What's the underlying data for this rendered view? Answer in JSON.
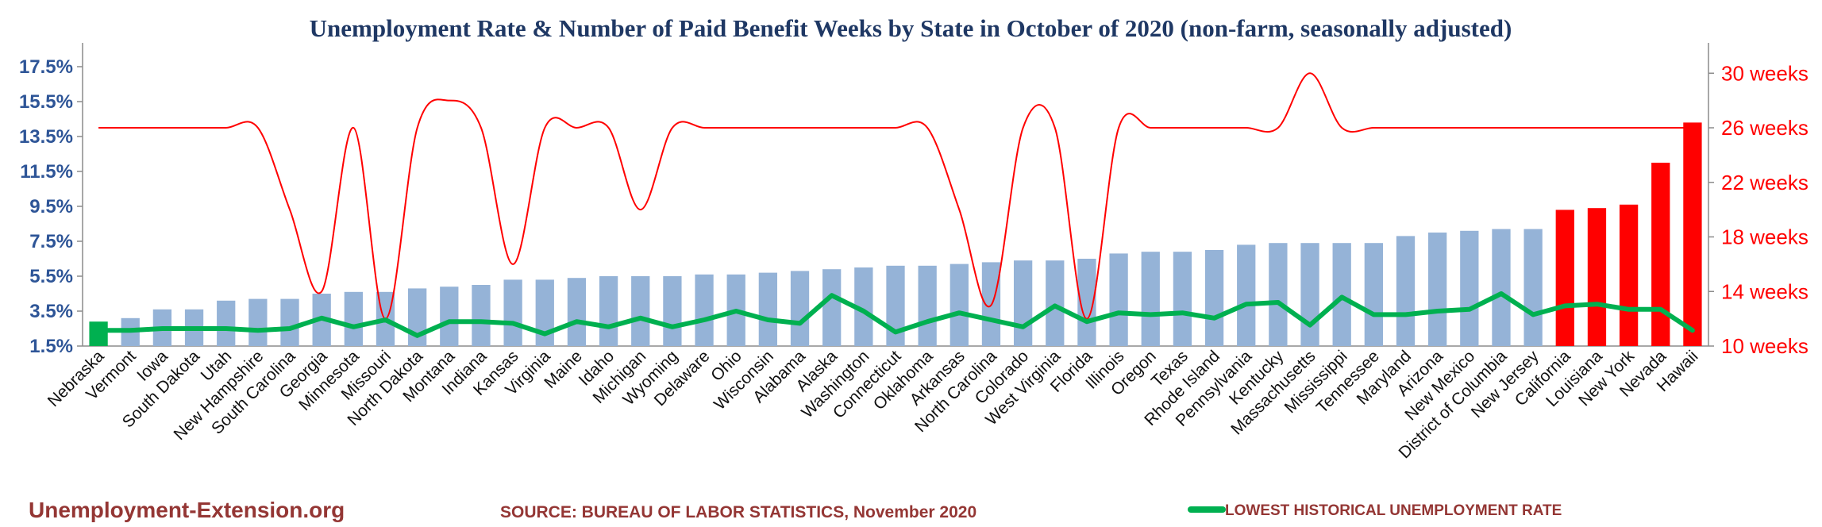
{
  "chart_data": {
    "type": "bar",
    "title": "Unemployment Rate & Number of Paid Benefit Weeks by State in October of 2020 (non-farm, seasonally adjusted)",
    "categories": [
      "Nebraska",
      "Vermont",
      "Iowa",
      "South Dakota",
      "Utah",
      "New Hampshire",
      "South Carolina",
      "Georgia",
      "Minnesota",
      "Missouri",
      "North Dakota",
      "Montana",
      "Indiana",
      "Kansas",
      "Virginia",
      "Maine",
      "Idaho",
      "Michigan",
      "Wyoming",
      "Delaware",
      "Ohio",
      "Wisconsin",
      "Alabama",
      "Alaska",
      "Washington",
      "Connecticut",
      "Oklahoma",
      "Arkansas",
      "North Carolina",
      "Colorado",
      "West Virginia",
      "Florida",
      "Illinois",
      "Oregon",
      "Texas",
      "Rhode Island",
      "Pennsylvania",
      "Kentucky",
      "Massachusetts",
      "Mississippi",
      "Tennessee",
      "Maryland",
      "Arizona",
      "New Mexico",
      "District of Columbia",
      "New Jersey",
      "California",
      "Louisiana",
      "New York",
      "Nevada",
      "Hawaii"
    ],
    "series": [
      {
        "role": "unemployment_rate_pct",
        "axis": "left",
        "values": [
          2.9,
          3.1,
          3.6,
          3.6,
          4.1,
          4.2,
          4.2,
          4.5,
          4.6,
          4.6,
          4.8,
          4.9,
          5.0,
          5.3,
          5.3,
          5.4,
          5.5,
          5.5,
          5.5,
          5.6,
          5.6,
          5.7,
          5.8,
          5.9,
          6.0,
          6.1,
          6.1,
          6.2,
          6.3,
          6.4,
          6.4,
          6.5,
          6.8,
          6.9,
          6.9,
          7.0,
          7.3,
          7.4,
          7.4,
          7.4,
          7.4,
          7.8,
          8.0,
          8.1,
          8.2,
          8.2,
          9.3,
          9.4,
          9.6,
          12.0,
          14.3
        ],
        "colors": [
          "#00b050",
          "#95b3d7",
          "#95b3d7",
          "#95b3d7",
          "#95b3d7",
          "#95b3d7",
          "#95b3d7",
          "#95b3d7",
          "#95b3d7",
          "#95b3d7",
          "#95b3d7",
          "#95b3d7",
          "#95b3d7",
          "#95b3d7",
          "#95b3d7",
          "#95b3d7",
          "#95b3d7",
          "#95b3d7",
          "#95b3d7",
          "#95b3d7",
          "#95b3d7",
          "#95b3d7",
          "#95b3d7",
          "#95b3d7",
          "#95b3d7",
          "#95b3d7",
          "#95b3d7",
          "#95b3d7",
          "#95b3d7",
          "#95b3d7",
          "#95b3d7",
          "#95b3d7",
          "#95b3d7",
          "#95b3d7",
          "#95b3d7",
          "#95b3d7",
          "#95b3d7",
          "#95b3d7",
          "#95b3d7",
          "#95b3d7",
          "#95b3d7",
          "#95b3d7",
          "#95b3d7",
          "#95b3d7",
          "#95b3d7",
          "#95b3d7",
          "#ff0000",
          "#ff0000",
          "#ff0000",
          "#ff0000",
          "#ff0000"
        ]
      },
      {
        "name": "LOWEST HISTORICAL UNEMPLOYMENT RATE",
        "type": "line",
        "axis": "left",
        "color": "#00b050",
        "values": [
          2.4,
          2.4,
          2.5,
          2.5,
          2.5,
          2.4,
          2.5,
          3.1,
          2.6,
          3.0,
          2.1,
          2.9,
          2.9,
          2.8,
          2.2,
          2.9,
          2.6,
          3.1,
          2.6,
          3.0,
          3.5,
          3.0,
          2.8,
          4.4,
          3.5,
          2.3,
          2.9,
          3.4,
          3.0,
          2.6,
          3.8,
          2.9,
          3.4,
          3.3,
          3.4,
          3.1,
          3.9,
          4.0,
          2.7,
          4.3,
          3.3,
          3.3,
          3.5,
          3.6,
          4.5,
          3.3,
          3.8,
          3.9,
          3.6,
          3.6,
          2.4
        ]
      },
      {
        "role": "paid_benefit_weeks",
        "type": "line",
        "axis": "right",
        "color": "#ff0000",
        "smooth": true,
        "values": [
          26,
          26,
          26,
          26,
          26,
          26,
          20,
          14,
          26,
          12,
          26,
          28,
          26,
          16,
          26,
          26,
          26,
          20,
          26,
          26,
          26,
          26,
          26,
          26,
          26,
          26,
          26,
          20,
          13,
          26,
          26,
          12,
          26,
          26,
          26,
          26,
          26,
          26,
          30,
          26,
          26,
          26,
          26,
          26,
          26,
          26,
          26,
          26,
          26,
          26,
          26
        ]
      }
    ],
    "y_left": {
      "ticks": [
        "1.5%",
        "3.5%",
        "5.5%",
        "7.5%",
        "9.5%",
        "11.5%",
        "13.5%",
        "15.5%",
        "17.5%"
      ],
      "ylim": [
        1.5,
        18.5
      ]
    },
    "y_right": {
      "ticks": [
        "10 weeks",
        "14 weeks",
        "18 weeks",
        "22 weeks",
        "26 weeks",
        "30 weeks"
      ],
      "ylim": [
        10,
        31.76
      ]
    },
    "grid": false,
    "legend_position": "bottom-right"
  },
  "footer": {
    "brand": "Unemployment-Extension.org",
    "source": "SOURCE: BUREAU OF LABOR STATISTICS, November 2020",
    "legend_label": "LOWEST HISTORICAL UNEMPLOYMENT RATE"
  }
}
